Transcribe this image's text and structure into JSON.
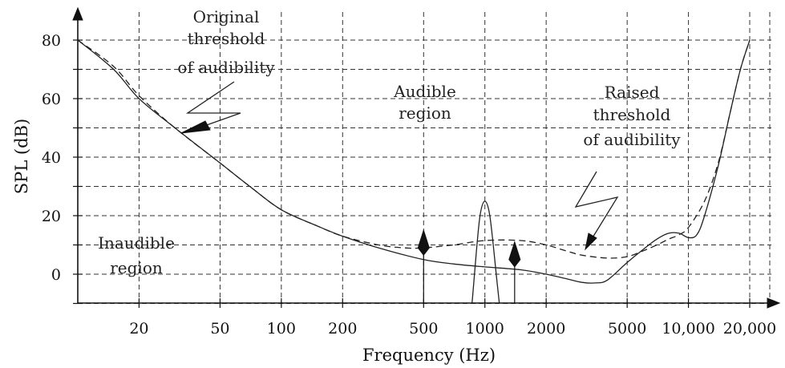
{
  "chart_data": {
    "type": "line",
    "xlabel": "Frequency (Hz)",
    "ylabel": "SPL (dB)",
    "xscale": "log",
    "xlim": [
      10,
      20000
    ],
    "ylim": [
      -10,
      85
    ],
    "grid": true,
    "x_ticks": [
      20,
      50,
      100,
      200,
      500,
      1000,
      2000,
      5000,
      10000,
      20000
    ],
    "x_tick_labels": [
      "20",
      "50",
      "100",
      "200",
      "500",
      "1000",
      "2000",
      "5000",
      "10,000",
      "20,000"
    ],
    "y_ticks": [
      0,
      20,
      40,
      60,
      80
    ],
    "y_tick_labels": [
      "0",
      "20",
      "40",
      "60",
      "80"
    ],
    "series": [
      {
        "id": "original",
        "style": "solid",
        "x": [
          10,
          15,
          20,
          30,
          50,
          70,
          100,
          150,
          200,
          300,
          500,
          700,
          1000,
          1500,
          2000,
          2500,
          3000,
          3500,
          4000,
          5000,
          6000,
          7000,
          8000,
          9000,
          10000,
          11000,
          12000,
          14000,
          16000,
          18000,
          20000
        ],
        "y": [
          80,
          70,
          60,
          50,
          38,
          30,
          22,
          16.5,
          13,
          9,
          5,
          3.5,
          2.5,
          1.5,
          0,
          -1.5,
          -2.8,
          -3,
          -2,
          4,
          8.5,
          12,
          14,
          14,
          12.5,
          13.5,
          20,
          37,
          55,
          70,
          80
        ]
      },
      {
        "id": "raised",
        "style": "dashed",
        "x": [
          10,
          15,
          20,
          30,
          50,
          70,
          100,
          150,
          200,
          300,
          400,
          500,
          700,
          1000,
          1500,
          2000,
          2500,
          3000,
          4000,
          5000,
          6000,
          7000,
          8000,
          9000,
          10000,
          12000,
          14000,
          16000,
          18000,
          20000
        ],
        "y": [
          80,
          71,
          61,
          50,
          38,
          30,
          22,
          16.5,
          13,
          10,
          9,
          9,
          10,
          11.5,
          11.5,
          10,
          8,
          6.5,
          5.5,
          6,
          8,
          10,
          12,
          13.5,
          16,
          25,
          38,
          55,
          70,
          80
        ]
      }
    ],
    "tone": {
      "x": 1000,
      "peak_db": 25
    },
    "markers": [
      {
        "x": 500,
        "y": 9
      },
      {
        "x": 1400,
        "y": 5
      }
    ],
    "annotations": [
      {
        "id": "original",
        "lines": [
          "Original",
          "threshold",
          "of audibility"
        ]
      },
      {
        "id": "audible",
        "lines": [
          "Audible",
          "region"
        ]
      },
      {
        "id": "raised",
        "lines": [
          "Raised",
          "threshold",
          "of audibility"
        ]
      },
      {
        "id": "inaudible",
        "lines": [
          "Inaudible",
          "region"
        ]
      }
    ]
  }
}
